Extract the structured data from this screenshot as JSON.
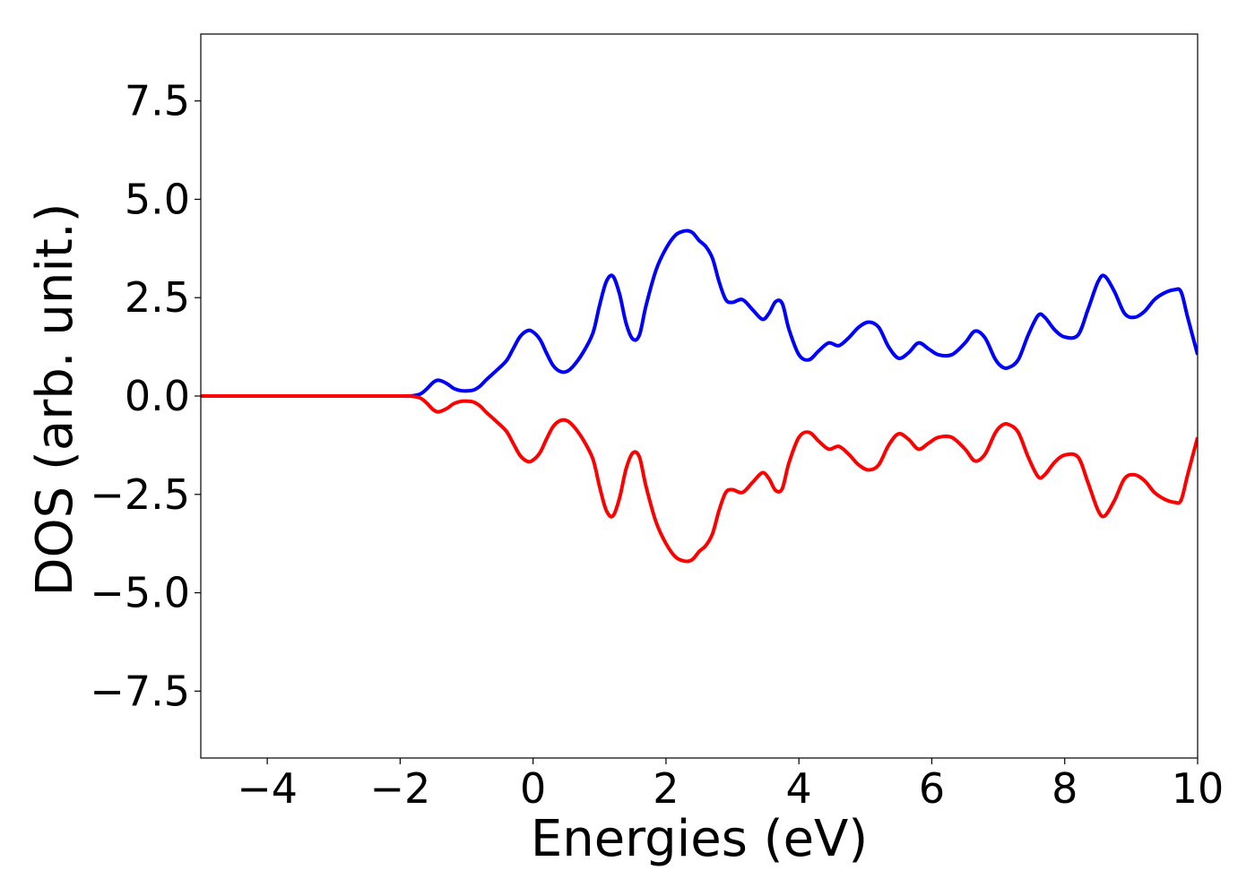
{
  "chart_data": {
    "type": "line",
    "title": "",
    "xlabel": "Energies (eV)",
    "ylabel": "DOS (arb. unit.)",
    "xlim": [
      -5,
      10
    ],
    "ylim": [
      -9.2,
      9.2
    ],
    "xticks": [
      -4,
      -2,
      0,
      2,
      4,
      6,
      8,
      10
    ],
    "xtick_labels": [
      "−4",
      "−2",
      "0",
      "2",
      "4",
      "6",
      "8",
      "10"
    ],
    "yticks": [
      -7.5,
      -5.0,
      -2.5,
      0.0,
      2.5,
      5.0,
      7.5
    ],
    "ytick_labels": [
      "−7.5",
      "−5.0",
      "−2.5",
      "0.0",
      "2.5",
      "5.0",
      "7.5"
    ],
    "grid": false,
    "legend": "none",
    "series": [
      {
        "color": "#0000ff",
        "x": [
          -5,
          -3,
          -2,
          -1.85,
          -1.7,
          -1.6,
          -1.5,
          -1.42,
          -1.3,
          -1.2,
          -1.1,
          -1.0,
          -0.9,
          -0.8,
          -0.7,
          -0.55,
          -0.4,
          -0.3,
          -0.2,
          -0.1,
          -0.02,
          0.1,
          0.2,
          0.3,
          0.4,
          0.5,
          0.6,
          0.75,
          0.9,
          1.0,
          1.1,
          1.2,
          1.3,
          1.4,
          1.5,
          1.6,
          1.7,
          1.85,
          2.0,
          2.15,
          2.3,
          2.4,
          2.5,
          2.6,
          2.7,
          2.8,
          2.9,
          3.0,
          3.15,
          3.3,
          3.45,
          3.55,
          3.65,
          3.75,
          3.85,
          4.0,
          4.15,
          4.3,
          4.45,
          4.6,
          4.75,
          4.9,
          5.05,
          5.2,
          5.35,
          5.5,
          5.65,
          5.8,
          5.95,
          6.1,
          6.3,
          6.5,
          6.65,
          6.8,
          6.95,
          7.05,
          7.15,
          7.3,
          7.45,
          7.6,
          7.7,
          7.85,
          8.0,
          8.2,
          8.35,
          8.5,
          8.6,
          8.75,
          8.9,
          9.05,
          9.2,
          9.35,
          9.5,
          9.65,
          9.75,
          9.85,
          10.0
        ],
        "y": [
          0.0,
          0.0,
          0.0,
          0.0,
          0.05,
          0.18,
          0.35,
          0.4,
          0.32,
          0.2,
          0.14,
          0.13,
          0.15,
          0.25,
          0.42,
          0.65,
          0.9,
          1.2,
          1.5,
          1.65,
          1.65,
          1.45,
          1.1,
          0.78,
          0.63,
          0.62,
          0.75,
          1.1,
          1.6,
          2.3,
          2.9,
          3.05,
          2.6,
          1.85,
          1.45,
          1.55,
          2.3,
          3.2,
          3.75,
          4.1,
          4.2,
          4.15,
          3.95,
          3.8,
          3.5,
          2.9,
          2.45,
          2.38,
          2.45,
          2.2,
          1.95,
          2.1,
          2.4,
          2.35,
          1.7,
          1.05,
          0.92,
          1.15,
          1.35,
          1.28,
          1.48,
          1.75,
          1.88,
          1.75,
          1.25,
          0.96,
          1.1,
          1.35,
          1.2,
          1.05,
          1.05,
          1.35,
          1.65,
          1.48,
          0.95,
          0.75,
          0.72,
          0.92,
          1.55,
          2.05,
          2.0,
          1.68,
          1.5,
          1.55,
          2.2,
          2.9,
          3.05,
          2.65,
          2.1,
          2.0,
          2.15,
          2.45,
          2.62,
          2.7,
          2.65,
          2.0,
          1.05
        ]
      },
      {
        "color": "#ff0000",
        "x": [
          -5,
          -3,
          -2,
          -1.85,
          -1.7,
          -1.6,
          -1.5,
          -1.42,
          -1.3,
          -1.2,
          -1.1,
          -1.0,
          -0.9,
          -0.8,
          -0.7,
          -0.55,
          -0.4,
          -0.3,
          -0.2,
          -0.1,
          -0.02,
          0.1,
          0.2,
          0.3,
          0.4,
          0.5,
          0.6,
          0.75,
          0.9,
          1.0,
          1.1,
          1.2,
          1.3,
          1.4,
          1.5,
          1.6,
          1.7,
          1.85,
          2.0,
          2.15,
          2.3,
          2.4,
          2.5,
          2.6,
          2.7,
          2.8,
          2.9,
          3.0,
          3.15,
          3.3,
          3.45,
          3.55,
          3.65,
          3.75,
          3.85,
          4.0,
          4.15,
          4.3,
          4.45,
          4.6,
          4.75,
          4.9,
          5.05,
          5.2,
          5.35,
          5.5,
          5.65,
          5.8,
          5.95,
          6.1,
          6.3,
          6.5,
          6.65,
          6.8,
          6.95,
          7.05,
          7.15,
          7.3,
          7.45,
          7.6,
          7.7,
          7.85,
          8.0,
          8.2,
          8.35,
          8.5,
          8.6,
          8.75,
          8.9,
          9.05,
          9.2,
          9.35,
          9.5,
          9.65,
          9.75,
          9.85,
          10.0
        ],
        "y": [
          0.0,
          0.0,
          0.0,
          0.0,
          -0.05,
          -0.18,
          -0.35,
          -0.4,
          -0.32,
          -0.2,
          -0.14,
          -0.13,
          -0.15,
          -0.25,
          -0.42,
          -0.65,
          -0.9,
          -1.2,
          -1.5,
          -1.65,
          -1.65,
          -1.45,
          -1.1,
          -0.78,
          -0.63,
          -0.62,
          -0.75,
          -1.1,
          -1.6,
          -2.3,
          -2.9,
          -3.05,
          -2.6,
          -1.85,
          -1.45,
          -1.55,
          -2.3,
          -3.2,
          -3.75,
          -4.1,
          -4.2,
          -4.15,
          -3.95,
          -3.8,
          -3.5,
          -2.9,
          -2.45,
          -2.38,
          -2.45,
          -2.2,
          -1.95,
          -2.1,
          -2.4,
          -2.35,
          -1.7,
          -1.05,
          -0.92,
          -1.15,
          -1.35,
          -1.28,
          -1.48,
          -1.75,
          -1.88,
          -1.75,
          -1.25,
          -0.96,
          -1.1,
          -1.35,
          -1.2,
          -1.05,
          -1.05,
          -1.35,
          -1.65,
          -1.48,
          -0.95,
          -0.75,
          -0.72,
          -0.92,
          -1.55,
          -2.05,
          -2.0,
          -1.68,
          -1.5,
          -1.55,
          -2.2,
          -2.9,
          -3.05,
          -2.65,
          -2.1,
          -2.0,
          -2.15,
          -2.45,
          -2.62,
          -2.7,
          -2.65,
          -2.0,
          -1.05
        ]
      }
    ]
  }
}
